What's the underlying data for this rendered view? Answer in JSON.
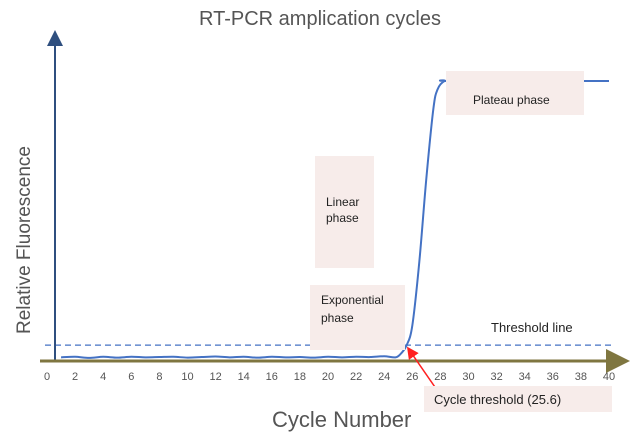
{
  "chart_data": {
    "type": "line",
    "title": "RT-PCR amplication cycles",
    "xlabel": "Cycle Number",
    "ylabel": "Relative Fluorescence",
    "xlim": [
      0,
      40
    ],
    "ylim": [
      0,
      1
    ],
    "x_ticks": [
      "0",
      "2",
      "4",
      "6",
      "8",
      "10",
      "12",
      "14",
      "16",
      "18",
      "20",
      "22",
      "24",
      "26",
      "28",
      "30",
      "32",
      "34",
      "36",
      "38",
      "40"
    ],
    "grid": false,
    "series": [
      {
        "color": "#4472c4",
        "x": [
          1,
          2,
          3,
          4,
          5,
          6,
          7,
          8,
          9,
          10,
          11,
          12,
          13,
          14,
          15,
          16,
          17,
          18,
          19,
          20,
          21,
          22,
          23,
          24,
          24.8,
          25.2,
          25.6,
          26,
          26.5,
          27,
          27.5,
          27.8,
          28.3,
          29,
          40
        ],
        "y": [
          0.006,
          0.008,
          0.004,
          0.008,
          0.005,
          0.008,
          0.006,
          0.007,
          0.008,
          0.005,
          0.007,
          0.009,
          0.006,
          0.008,
          0.005,
          0.008,
          0.006,
          0.007,
          0.005,
          0.008,
          0.006,
          0.008,
          0.007,
          0.01,
          0.006,
          0.02,
          0.05,
          0.12,
          0.35,
          0.65,
          0.9,
          0.97,
          1.0,
          1.0,
          1.0
        ]
      }
    ],
    "threshold": {
      "value": 0.05,
      "label": "Threshold line",
      "color": "#4472c4"
    },
    "annotations": {
      "plateau": "Plateau phase",
      "linear": [
        "Linear",
        "phase"
      ],
      "exponential": [
        "Exponential",
        "phase"
      ],
      "cycle_threshold": "Cycle threshold (25.6)",
      "cycle_threshold_x": 25.6,
      "arrow_color": "#ff2020"
    },
    "x_axis_color": "#7f7640",
    "y_axis_color": "#2f4f7f"
  }
}
